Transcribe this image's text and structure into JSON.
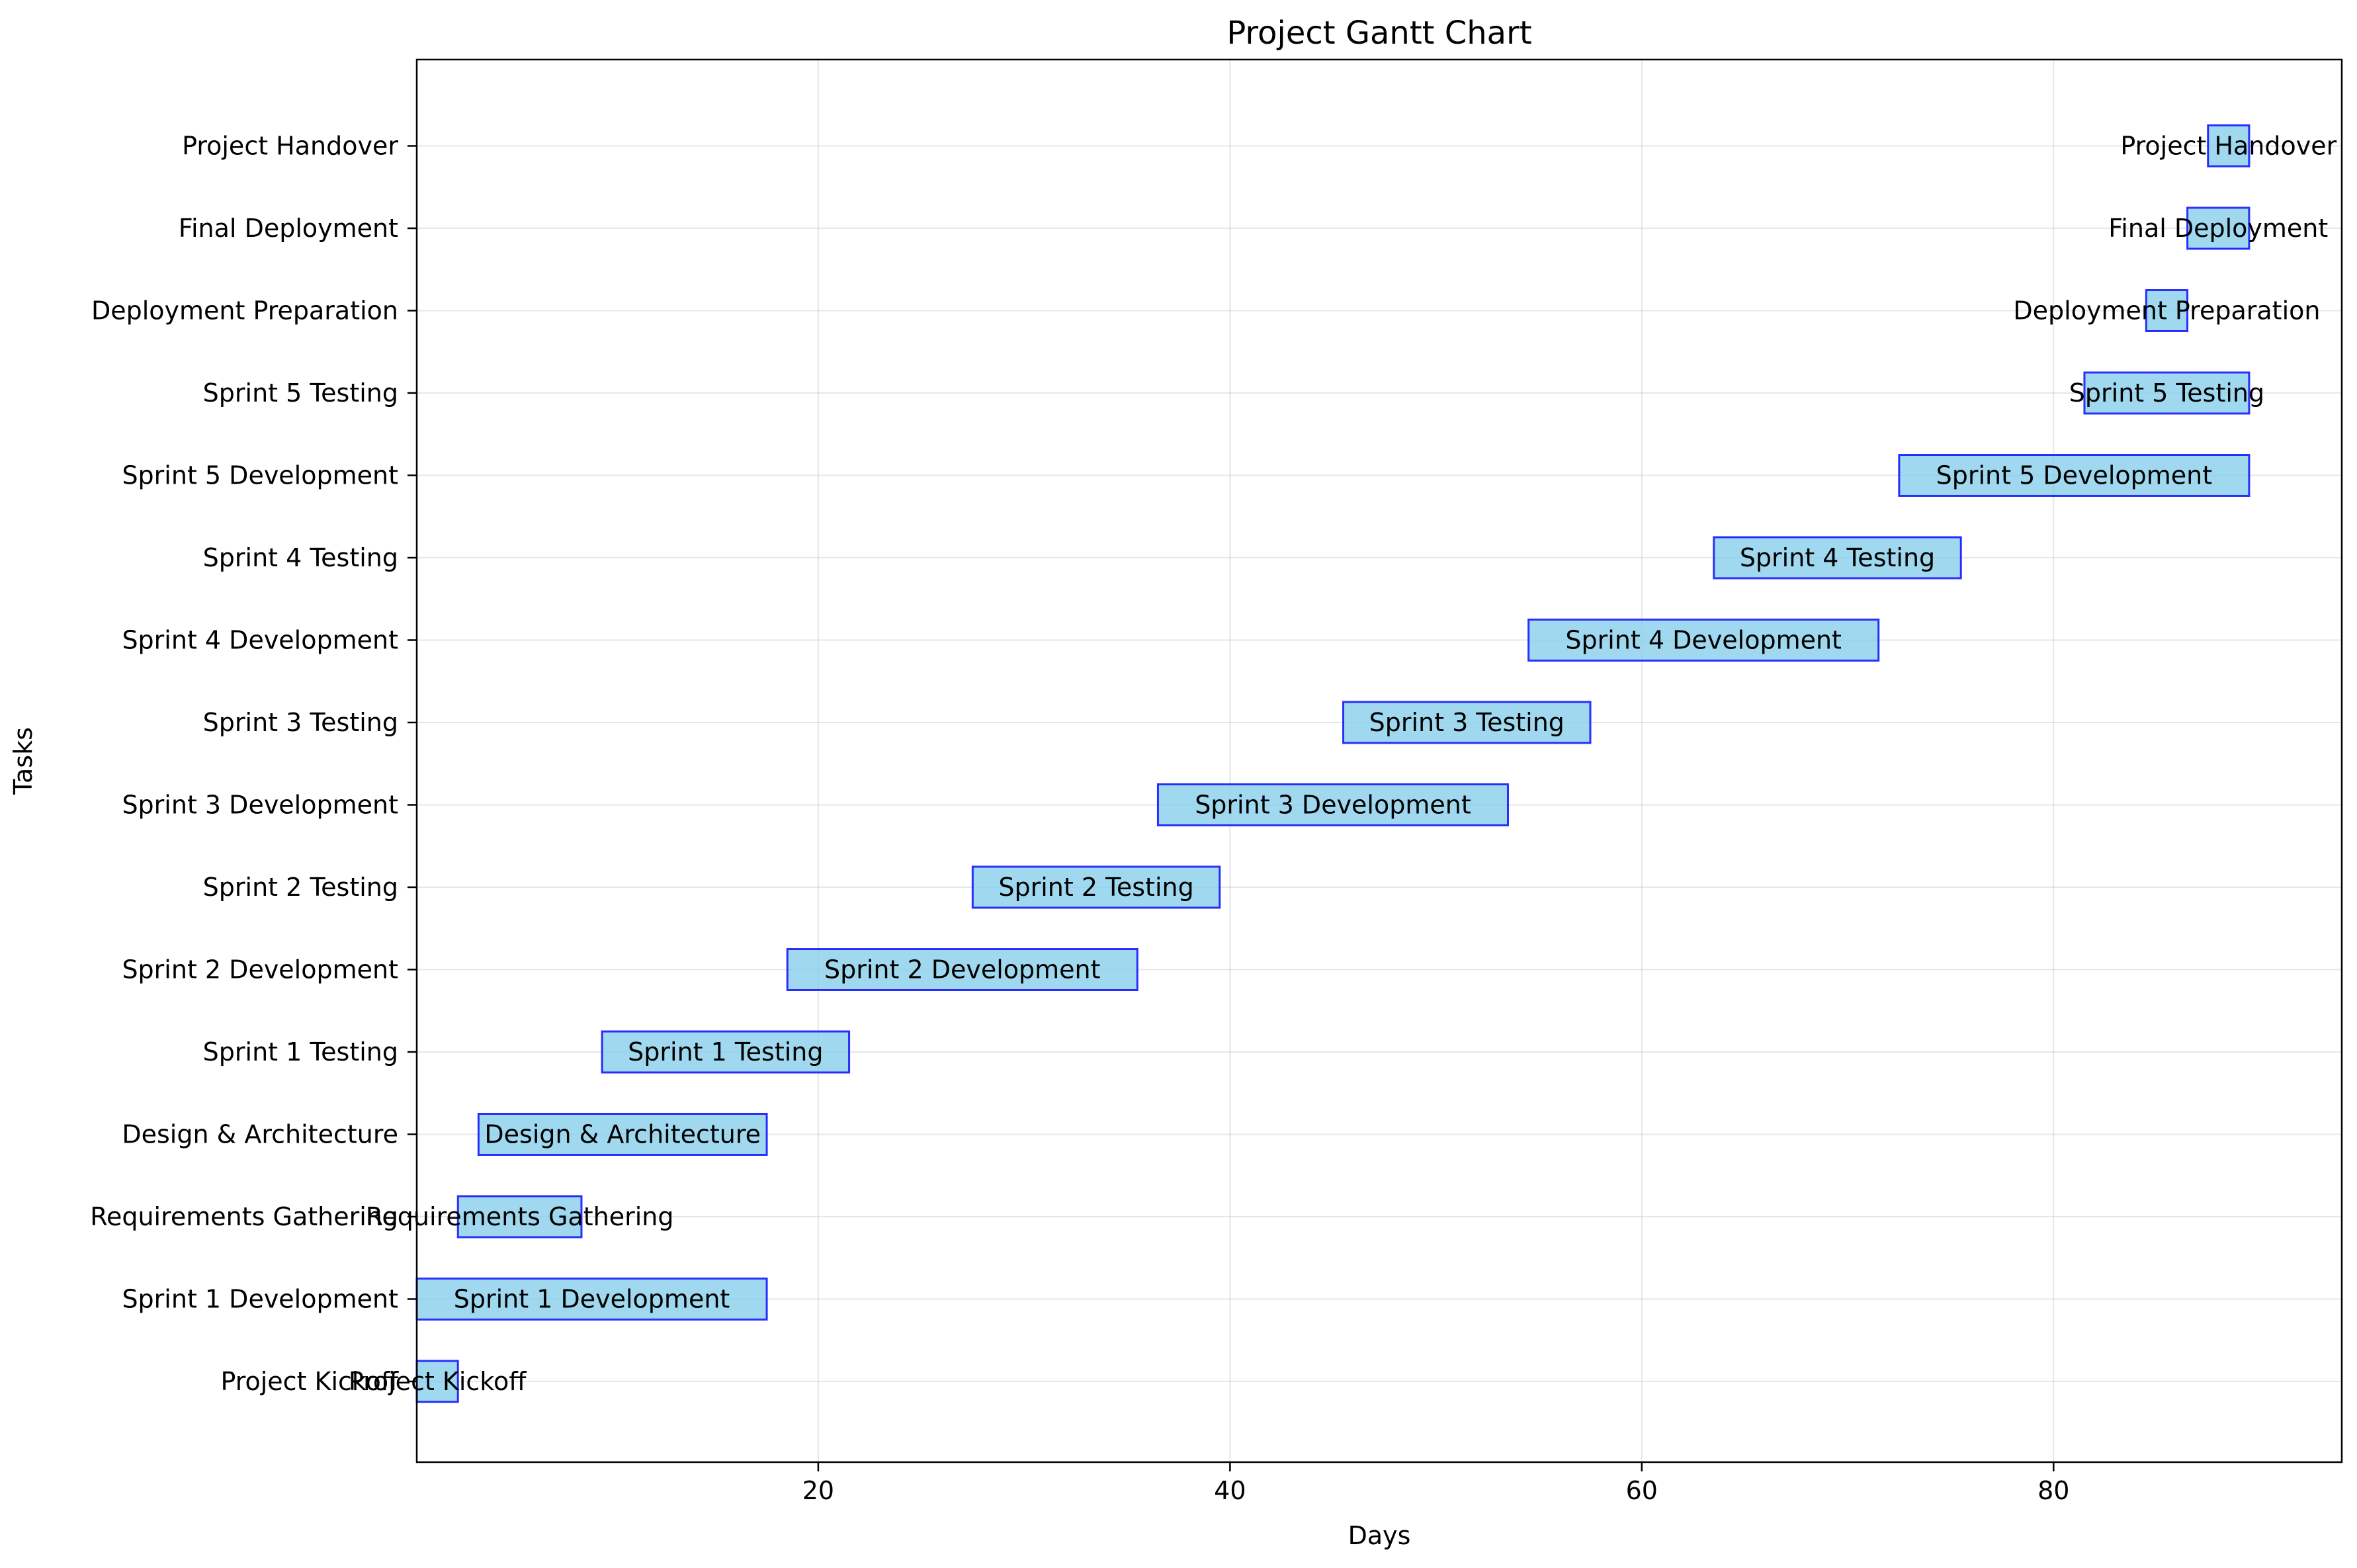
{
  "chart_data": {
    "type": "bar",
    "orientation": "horizontal-gantt",
    "title": "Project Gantt Chart",
    "xlabel": "Days",
    "ylabel": "Tasks",
    "xlim": [
      0.5,
      94
    ],
    "x_ticks": [
      20,
      40,
      60,
      80
    ],
    "grid": true,
    "legend": "none",
    "bar_fill": "#87ceeb",
    "bar_edge": "#0000ff",
    "tasks": [
      {
        "name": "Project Kickoff",
        "start": 0.5,
        "end": 2.5
      },
      {
        "name": "Sprint 1 Development",
        "start": 0.5,
        "end": 17.5
      },
      {
        "name": "Requirements Gathering",
        "start": 2.5,
        "end": 8.5
      },
      {
        "name": "Design & Architecture",
        "start": 3.5,
        "end": 17.5
      },
      {
        "name": "Sprint 1 Testing",
        "start": 9.5,
        "end": 21.5
      },
      {
        "name": "Sprint 2 Development",
        "start": 18.5,
        "end": 35.5
      },
      {
        "name": "Sprint 2 Testing",
        "start": 27.5,
        "end": 39.5
      },
      {
        "name": "Sprint 3 Development",
        "start": 36.5,
        "end": 53.5
      },
      {
        "name": "Sprint 3 Testing",
        "start": 45.5,
        "end": 57.5
      },
      {
        "name": "Sprint 4 Development",
        "start": 54.5,
        "end": 71.5
      },
      {
        "name": "Sprint 4 Testing",
        "start": 63.5,
        "end": 75.5
      },
      {
        "name": "Sprint 5 Development",
        "start": 72.5,
        "end": 89.5
      },
      {
        "name": "Sprint 5 Testing",
        "start": 81.5,
        "end": 89.5
      },
      {
        "name": "Deployment Preparation",
        "start": 84.5,
        "end": 86.5
      },
      {
        "name": "Final Deployment",
        "start": 86.5,
        "end": 89.5
      },
      {
        "name": "Project Handover",
        "start": 87.5,
        "end": 89.5
      }
    ]
  }
}
